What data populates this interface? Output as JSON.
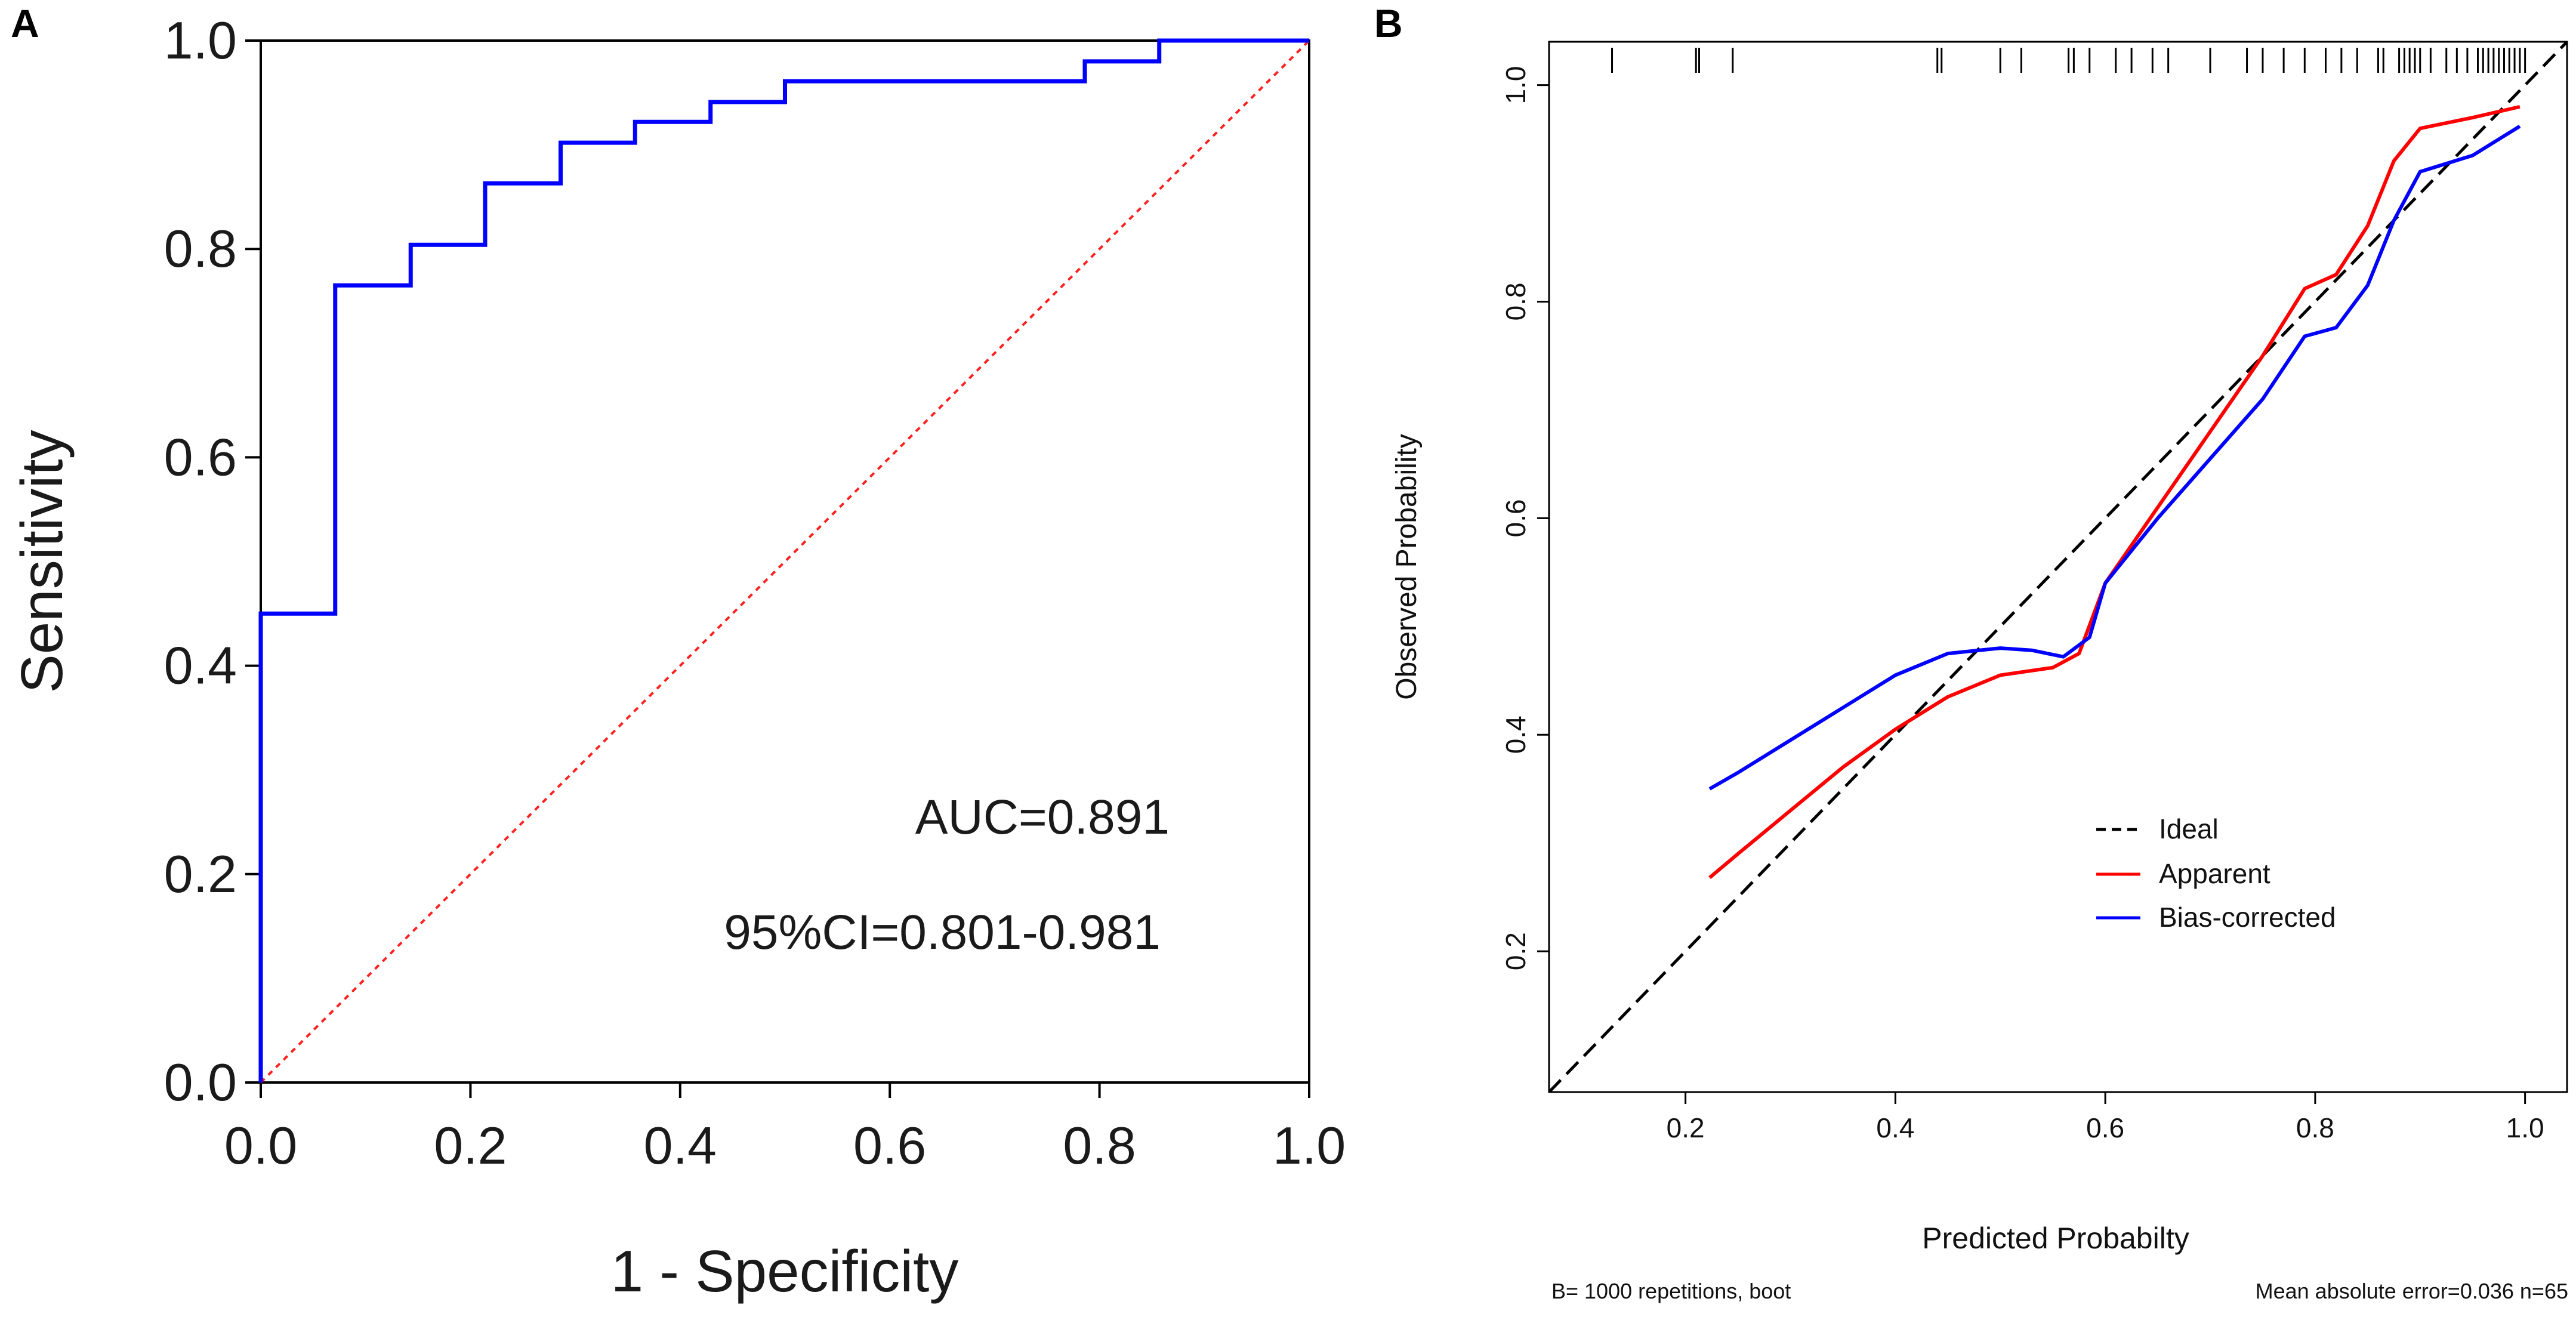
{
  "panels": {
    "a_label": "A",
    "b_label": "B"
  },
  "colors": {
    "roc_curve": "#0000ff",
    "reference_line": "#ff2020",
    "apparent": "#ff0000",
    "bias_corrected": "#0000ff",
    "ideal": "#000000",
    "axis": "#000000"
  },
  "chart_data": [
    {
      "panel": "A",
      "type": "line",
      "title": "",
      "xlabel": "1 - Specificity",
      "ylabel": "Sensitivity",
      "xlim": [
        0,
        1
      ],
      "ylim": [
        0,
        1
      ],
      "xticks": [
        "0.0",
        "0.2",
        "0.4",
        "0.6",
        "0.8",
        "1.0"
      ],
      "yticks": [
        "0.0",
        "0.2",
        "0.4",
        "0.6",
        "0.8",
        "1.0"
      ],
      "series": [
        {
          "name": "ROC",
          "style": "step",
          "points": [
            [
              0,
              0
            ],
            [
              0,
              0.45
            ],
            [
              0.071,
              0.45
            ],
            [
              0.071,
              0.765
            ],
            [
              0.143,
              0.765
            ],
            [
              0.143,
              0.804
            ],
            [
              0.214,
              0.804
            ],
            [
              0.214,
              0.863
            ],
            [
              0.286,
              0.863
            ],
            [
              0.286,
              0.902
            ],
            [
              0.357,
              0.902
            ],
            [
              0.357,
              0.922
            ],
            [
              0.429,
              0.922
            ],
            [
              0.429,
              0.941
            ],
            [
              0.5,
              0.941
            ],
            [
              0.5,
              0.961
            ],
            [
              0.786,
              0.961
            ],
            [
              0.786,
              0.98
            ],
            [
              0.857,
              0.98
            ],
            [
              0.857,
              1.0
            ],
            [
              1.0,
              1.0
            ]
          ]
        },
        {
          "name": "Reference",
          "style": "dotted",
          "points": [
            [
              0,
              0
            ],
            [
              1,
              1
            ]
          ]
        }
      ],
      "annotations": {
        "auc": "AUC=0.891",
        "ci": "95%CI=0.801-0.981"
      }
    },
    {
      "panel": "B",
      "type": "line",
      "title": "",
      "xlabel": "Predicted Probabilty",
      "ylabel": "Observed Probability",
      "xlim": [
        0.07,
        1.04
      ],
      "ylim": [
        0.07,
        1.04
      ],
      "xticks": [
        "0.2",
        "0.4",
        "0.6",
        "0.8",
        "1.0"
      ],
      "yticks": [
        "0.2",
        "0.4",
        "0.6",
        "0.8",
        "1.0"
      ],
      "rug": [
        0.13,
        0.21,
        0.213,
        0.245,
        0.44,
        0.444,
        0.5,
        0.52,
        0.565,
        0.57,
        0.585,
        0.61,
        0.625,
        0.645,
        0.66,
        0.7,
        0.735,
        0.75,
        0.77,
        0.79,
        0.81,
        0.825,
        0.84,
        0.86,
        0.865,
        0.88,
        0.885,
        0.89,
        0.895,
        0.9,
        0.91,
        0.925,
        0.935,
        0.945,
        0.955,
        0.96,
        0.965,
        0.97,
        0.975,
        0.98,
        0.985,
        0.99,
        0.995,
        1.0
      ],
      "series": [
        {
          "name": "Ideal",
          "style": "dashed",
          "points": [
            [
              0.07,
              0.07
            ],
            [
              1.04,
              1.04
            ]
          ]
        },
        {
          "name": "Apparent",
          "style": "solid",
          "points": [
            [
              0.223,
              0.268
            ],
            [
              0.25,
              0.29
            ],
            [
              0.3,
              0.33
            ],
            [
              0.35,
              0.37
            ],
            [
              0.4,
              0.405
            ],
            [
              0.45,
              0.435
            ],
            [
              0.5,
              0.455
            ],
            [
              0.55,
              0.462
            ],
            [
              0.575,
              0.475
            ],
            [
              0.6,
              0.54
            ],
            [
              0.65,
              0.61
            ],
            [
              0.7,
              0.68
            ],
            [
              0.75,
              0.75
            ],
            [
              0.79,
              0.812
            ],
            [
              0.82,
              0.825
            ],
            [
              0.85,
              0.87
            ],
            [
              0.875,
              0.93
            ],
            [
              0.9,
              0.96
            ],
            [
              0.95,
              0.97
            ],
            [
              0.995,
              0.98
            ]
          ]
        },
        {
          "name": "Bias-corrected",
          "style": "solid",
          "points": [
            [
              0.223,
              0.35
            ],
            [
              0.25,
              0.365
            ],
            [
              0.3,
              0.395
            ],
            [
              0.35,
              0.425
            ],
            [
              0.4,
              0.455
            ],
            [
              0.45,
              0.475
            ],
            [
              0.5,
              0.48
            ],
            [
              0.53,
              0.478
            ],
            [
              0.56,
              0.472
            ],
            [
              0.585,
              0.49
            ],
            [
              0.6,
              0.54
            ],
            [
              0.65,
              0.6
            ],
            [
              0.7,
              0.655
            ],
            [
              0.75,
              0.71
            ],
            [
              0.79,
              0.768
            ],
            [
              0.82,
              0.776
            ],
            [
              0.85,
              0.815
            ],
            [
              0.875,
              0.875
            ],
            [
              0.9,
              0.92
            ],
            [
              0.95,
              0.935
            ],
            [
              0.995,
              0.962
            ]
          ]
        }
      ],
      "legend": {
        "position": "bottom-center",
        "items": [
          "Ideal",
          "Apparent",
          "Bias-corrected"
        ]
      },
      "footer": {
        "left": "B= 1000 repetitions, boot",
        "right": "Mean absolute error=0.036 n=65"
      }
    }
  ]
}
